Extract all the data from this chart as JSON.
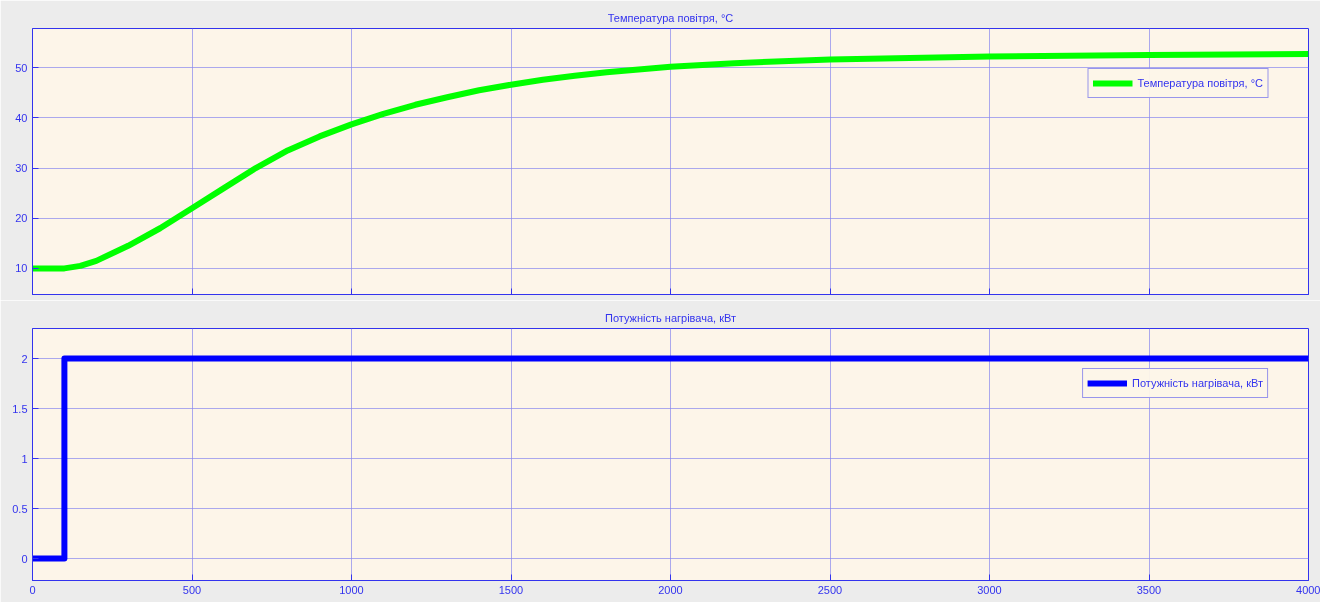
{
  "chart_data": [
    {
      "type": "line",
      "title": "Температура повітря, °C",
      "xlim": [
        0,
        4000
      ],
      "xticks": [
        0,
        500,
        1000,
        1500,
        2000,
        2500,
        3000,
        3500,
        4000
      ],
      "ylim": [
        4.8,
        57.8
      ],
      "yticks": [
        10,
        20,
        30,
        40,
        50
      ],
      "tick_labels": "y",
      "grid": true,
      "legend": "top right",
      "series": [
        {
          "name": "Температура повітря, °C",
          "color": "#00ff00",
          "x": [
            0,
            100,
            150,
            200,
            300,
            400,
            500,
            600,
            700,
            800,
            900,
            1000,
            1100,
            1200,
            1300,
            1400,
            1500,
            1600,
            1700,
            1800,
            2000,
            2200,
            2500,
            3000,
            3500,
            4000
          ],
          "values": [
            10,
            10,
            10.5,
            11.5,
            14.5,
            18,
            22,
            26,
            30,
            33.5,
            36.3,
            38.7,
            40.8,
            42.6,
            44.1,
            45.5,
            46.6,
            47.6,
            48.4,
            49.1,
            50.2,
            50.9,
            51.6,
            52.2,
            52.5,
            52.7
          ]
        }
      ]
    },
    {
      "type": "step",
      "title": "Потужність нагрівача, кВт",
      "xlim": [
        0,
        4000
      ],
      "xticks": [
        0,
        500,
        1000,
        1500,
        2000,
        2500,
        3000,
        3500,
        4000
      ],
      "ylim": [
        -0.22,
        2.3
      ],
      "yticks": [
        0,
        0.5,
        1,
        1.5,
        2
      ],
      "grid": true,
      "legend": "top right",
      "series": [
        {
          "name": "Потужність нагрівача, кВт",
          "color": "#0000ff",
          "x": [
            0,
            100,
            4000
          ],
          "values": [
            0,
            2,
            2
          ]
        }
      ]
    }
  ]
}
